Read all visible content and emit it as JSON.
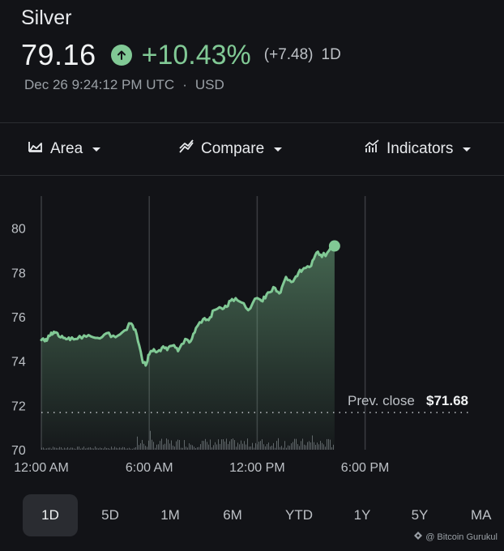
{
  "header": {
    "title": "Silver",
    "price": "79.16",
    "change_pct": "+10.43%",
    "change_abs": "(+7.48)",
    "span": "1D",
    "timestamp": "Dec 26 9:24:12 PM UTC",
    "separator": "·",
    "currency": "USD",
    "accent_color": "#81c995"
  },
  "toolbar": {
    "area_label": "Area",
    "compare_label": "Compare",
    "indicators_label": "Indicators"
  },
  "chart_data": {
    "type": "area",
    "x_ticks": [
      "12:00 AM",
      "6:00 AM",
      "12:00 PM",
      "6:00 PM"
    ],
    "y_ticks": [
      "80",
      "78",
      "76",
      "74",
      "72",
      "70"
    ],
    "ylim": [
      70,
      80.5
    ],
    "prev_close_label": "Prev. close",
    "prev_close_value": "$71.68",
    "prev_close": 71.68,
    "series": [
      {
        "x": [
          0,
          0.2,
          0.4,
          0.6,
          0.8,
          1.0,
          1.3,
          1.6,
          2.0,
          2.5,
          3.0,
          3.5,
          4.0,
          4.5,
          5.0,
          5.3,
          5.6,
          5.8,
          6.0,
          6.2,
          6.4,
          6.7,
          7.0,
          7.3,
          7.6,
          8.0,
          8.3,
          8.6,
          9.0,
          9.3,
          9.6,
          10.0,
          10.3,
          10.6,
          11.0,
          11.5,
          12.0,
          12.3,
          12.6,
          13.0,
          13.3,
          13.6,
          14.0,
          14.3,
          14.6,
          15.0,
          15.3,
          15.6,
          16.0,
          16.3
        ],
        "y": [
          74.95,
          74.9,
          75.15,
          75.2,
          75.3,
          75.1,
          75.05,
          74.95,
          75.0,
          75.1,
          75.05,
          75.2,
          75.15,
          75.3,
          75.7,
          75.2,
          74.1,
          73.8,
          74.3,
          74.45,
          74.4,
          74.6,
          74.5,
          74.7,
          74.45,
          75.0,
          74.9,
          75.5,
          75.9,
          75.85,
          76.3,
          76.4,
          76.45,
          76.8,
          76.7,
          76.3,
          76.85,
          76.7,
          77.1,
          77.3,
          77.1,
          77.8,
          77.6,
          78.0,
          78.2,
          78.3,
          78.9,
          78.7,
          79.0,
          79.2
        ]
      }
    ],
    "line_color": "#81c995"
  },
  "ranges": {
    "items": [
      "1D",
      "5D",
      "1M",
      "6M",
      "YTD",
      "1Y",
      "5Y",
      "MA"
    ],
    "active": "1D"
  },
  "watermark": {
    "text": "@ Bitcoin Gurukul"
  }
}
